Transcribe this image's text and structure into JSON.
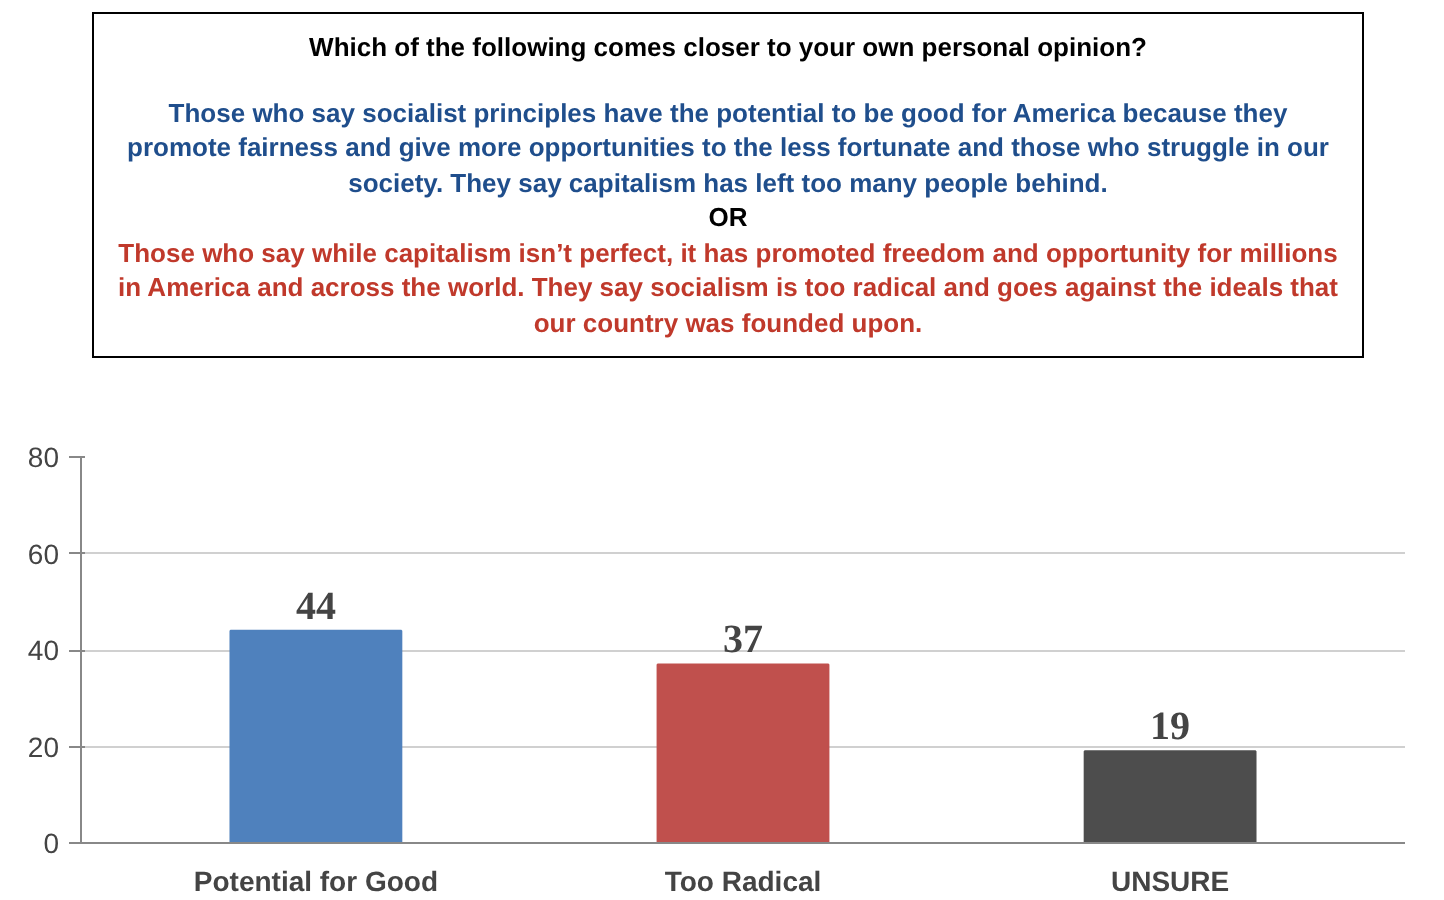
{
  "chart_data": {
    "type": "bar",
    "title": "Which of the following comes closer to your own personal opinion?",
    "annotations": [
      "Those who say socialist principles have the potential to be good for America because they promote fairness and give more opportunities to the less fortunate and those who struggle in our society. They say capitalism has left too many people behind.",
      "OR",
      "Those who say while capitalism isn’t perfect, it has promoted freedom and opportunity for millions in America and across the world. They say socialism is too radical and goes against the ideals that our country was founded upon."
    ],
    "categories": [
      "Potential for Good",
      "Too Radical",
      "UNSURE"
    ],
    "values": [
      44,
      37,
      19
    ],
    "colors": [
      "#4f81bd",
      "#c0504d",
      "#4d4d4d"
    ],
    "ylim": [
      0,
      80
    ],
    "yticks": [
      0,
      20,
      40,
      60,
      80
    ],
    "grid": "y",
    "data_labels": true
  }
}
